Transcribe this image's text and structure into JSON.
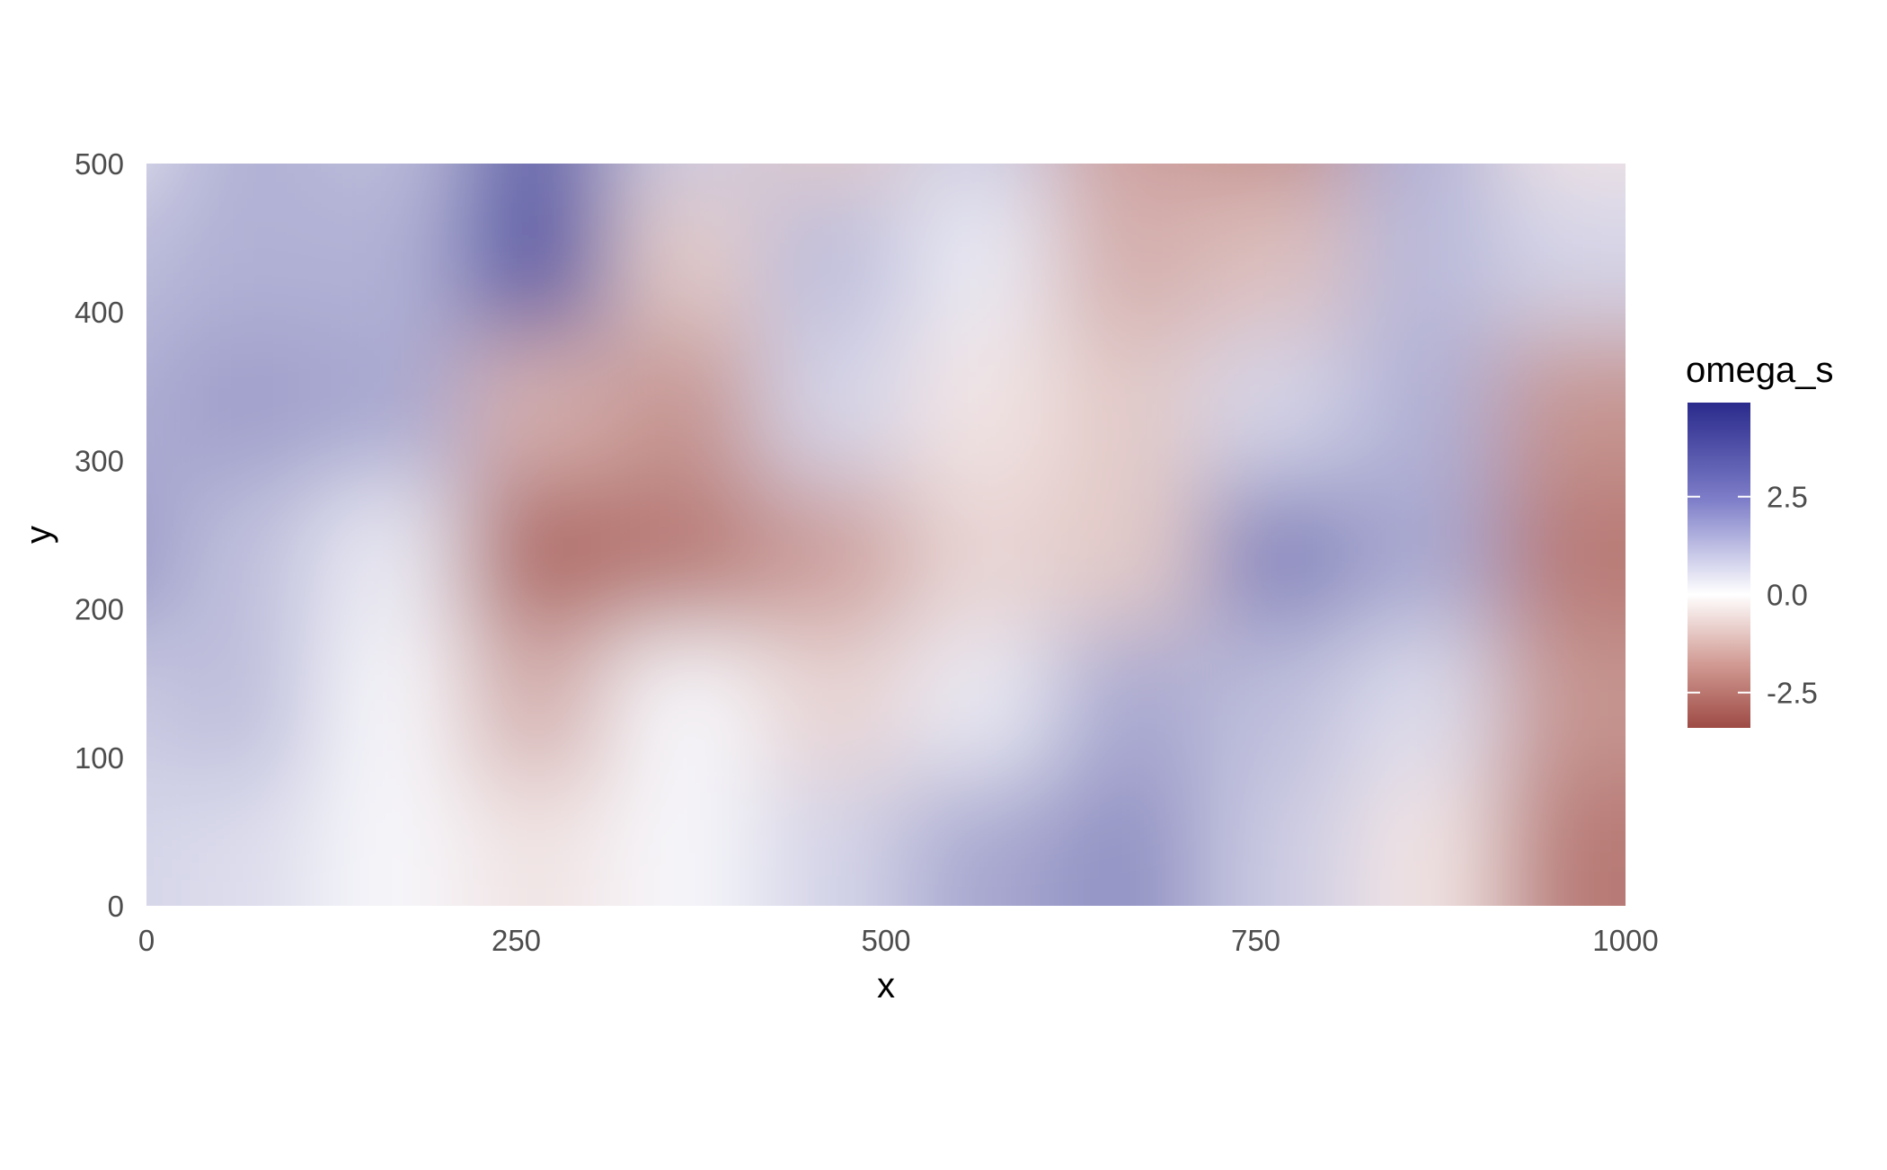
{
  "chart_data": {
    "type": "heatmap",
    "title": "",
    "xlabel": "x",
    "ylabel": "y",
    "xlim": [
      0,
      1000
    ],
    "ylim": [
      0,
      500
    ],
    "x_ticks": [
      {
        "value": 0,
        "label": "0"
      },
      {
        "value": 250,
        "label": "250"
      },
      {
        "value": 500,
        "label": "500"
      },
      {
        "value": 750,
        "label": "750"
      },
      {
        "value": 1000,
        "label": "1000"
      }
    ],
    "y_ticks": [
      {
        "value": 0,
        "label": "0"
      },
      {
        "value": 100,
        "label": "100"
      },
      {
        "value": 200,
        "label": "200"
      },
      {
        "value": 300,
        "label": "300"
      },
      {
        "value": 400,
        "label": "400"
      },
      {
        "value": 500,
        "label": "500"
      }
    ],
    "legend": {
      "title": "omega_s",
      "placement": "right",
      "range": [
        -3.4,
        4.9
      ],
      "ticks": [
        {
          "value": 2.5,
          "label": "2.5"
        },
        {
          "value": 0.0,
          "label": "0.0"
        },
        {
          "value": -2.5,
          "label": "-2.5"
        }
      ]
    },
    "colors": {
      "low": "#9e4a44",
      "mid": "#ffffff",
      "high": "#2a2a8c"
    },
    "grid": false,
    "grid_x_columns": [
      "0",
      "100",
      "200",
      "300",
      "400",
      "500",
      "600",
      "700",
      "800",
      "900",
      "1000"
    ],
    "grid_y_rows": [
      "500",
      "400",
      "300",
      "200",
      "100",
      "0"
    ],
    "z_matrix": [
      [
        0.5,
        1.8,
        1.5,
        3.5,
        1.2,
        -1.0,
        1.2,
        -1.8,
        -2.2,
        1.8,
        -0.5
      ],
      [
        1.5,
        1.8,
        1.8,
        3.8,
        -1.0,
        1.5,
        0.5,
        -1.5,
        -1.2,
        1.6,
        1.0
      ],
      [
        1.8,
        2.2,
        2.0,
        -1.5,
        -2.0,
        1.0,
        -0.5,
        -1.0,
        1.0,
        1.8,
        -2.0
      ],
      [
        2.5,
        1.5,
        0.5,
        -2.8,
        -2.5,
        -1.8,
        -0.8,
        -1.0,
        2.8,
        2.0,
        -2.5
      ],
      [
        1.2,
        1.5,
        0.2,
        -1.5,
        0.2,
        -0.8,
        0.5,
        2.0,
        1.5,
        0.8,
        -2.0
      ],
      [
        1.0,
        0.8,
        0.2,
        -0.5,
        0.2,
        1.0,
        2.0,
        2.5,
        1.2,
        -0.5,
        -2.5
      ]
    ]
  }
}
